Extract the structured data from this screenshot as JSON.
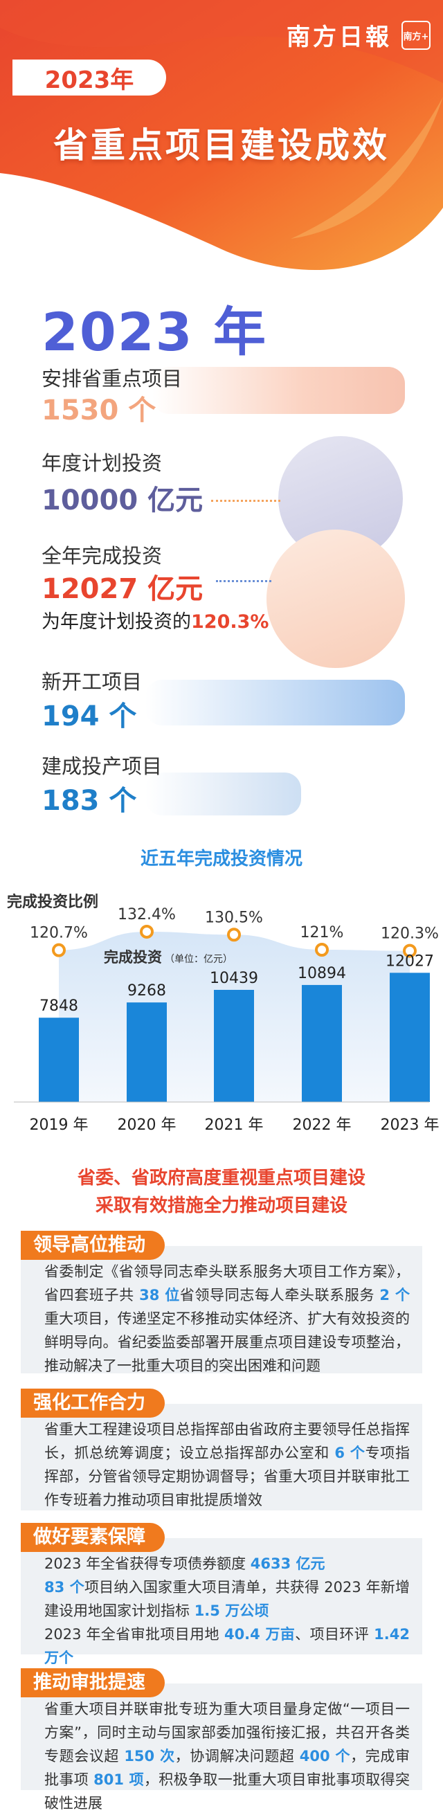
{
  "header": {
    "brand": "南方日報",
    "brand_seal": "南方+",
    "year_tag": "2023年",
    "title": "省重点项目建设成效"
  },
  "overview": {
    "year": "2023 年",
    "stats": [
      {
        "label": "安排省重点项目",
        "value": "1530 个",
        "color": "#f0a07a"
      },
      {
        "label": "年度计划投资",
        "value": "10000 亿元",
        "color": "#5c5c9a"
      },
      {
        "label": "全年完成投资",
        "value": "12027 亿元",
        "color": "#e8452e",
        "note": "为年度计划投资的",
        "note_value": "120.3%"
      },
      {
        "label": "新开工项目",
        "value": "194 个",
        "color": "#1f7fc9"
      },
      {
        "label": "建成投产项目",
        "value": "183 个",
        "color": "#1f7fc9"
      }
    ]
  },
  "chart_section": {
    "title": "近五年完成投资情况"
  },
  "chart_data": {
    "type": "bar",
    "categories": [
      "2019 年",
      "2020 年",
      "2021 年",
      "2022 年",
      "2023 年"
    ],
    "series": [
      {
        "name": "完成投资",
        "unit": "（单位：亿元）",
        "values": [
          7848,
          9268,
          10439,
          10894,
          12027
        ],
        "color": "#1a86d9"
      },
      {
        "name": "完成投资比例",
        "values": [
          120.7,
          132.4,
          130.5,
          121,
          120.3
        ],
        "value_labels": [
          "120.7%",
          "132.4%",
          "130.5%",
          "121%",
          "120.3%"
        ],
        "color": "#f39a1e"
      }
    ],
    "ylim": [
      0,
      12500
    ],
    "ratio_range": [
      100,
      135
    ],
    "grid": false
  },
  "policy": {
    "line1": "省委、省政府高度重视重点项目建设",
    "line2": "采取有效措施全力推动项目建设"
  },
  "measures": [
    {
      "tag": "领导高位推动",
      "paragraphs": [
        [
          {
            "t": "省委制定《省领导同志牵头联系服务大项目工作方案》，省四套班子共 "
          },
          {
            "t": "38 位",
            "hl": true
          },
          {
            "t": "省领导同志每人牵头联系服务 "
          },
          {
            "t": "2 个",
            "hl": true
          },
          {
            "t": "重大项目，传递坚定不移推动实体经济、扩大有效投资的鲜明导向。省纪委监委部署开展重点项目建设专项整治，推动解决了一批重大项目的突出困难和问题"
          }
        ]
      ]
    },
    {
      "tag": "强化工作合力",
      "paragraphs": [
        [
          {
            "t": "省重大工程建设项目总指挥部由省政府主要领导任总指挥长，抓总统筹调度；设立总指挥部办公室和 "
          },
          {
            "t": "6 个",
            "hl": true
          },
          {
            "t": "专项指挥部，分管省领导定期协调督导；省重大项目并联审批工作专班着力推动项目审批提质增效"
          }
        ]
      ]
    },
    {
      "tag": "做好要素保障",
      "paragraphs": [
        [
          {
            "t": "2023 年全省获得专项债券额度 "
          },
          {
            "t": "4633 亿元",
            "hl": true
          }
        ],
        [
          {
            "t": "83 个",
            "hl": true
          },
          {
            "t": "项目纳入国家重大项目清单，共获得 2023 年新增建设用地国家计划指标 "
          },
          {
            "t": "1.5 万公顷",
            "hl": true
          }
        ],
        [
          {
            "t": "2023 年全省审批项目用地 "
          },
          {
            "t": "40.4 万亩",
            "hl": true
          },
          {
            "t": "、项目环评 "
          },
          {
            "t": "1.42 万个",
            "hl": true
          }
        ]
      ]
    },
    {
      "tag": "推动审批提速",
      "paragraphs": [
        [
          {
            "t": "省重大项目并联审批专班为重大项目量身定做“一项目一方案”，同时主动与国家部委加强衔接汇报，共召开各类专题会议超 "
          },
          {
            "t": "150 次",
            "hl": true
          },
          {
            "t": "，协调解决问题超 "
          },
          {
            "t": "400 个",
            "hl": true
          },
          {
            "t": "，完成审批事项 "
          },
          {
            "t": "801 项",
            "hl": true
          },
          {
            "t": "，积极争取一批重大项目审批事项取得突破性进展"
          }
        ]
      ]
    }
  ]
}
